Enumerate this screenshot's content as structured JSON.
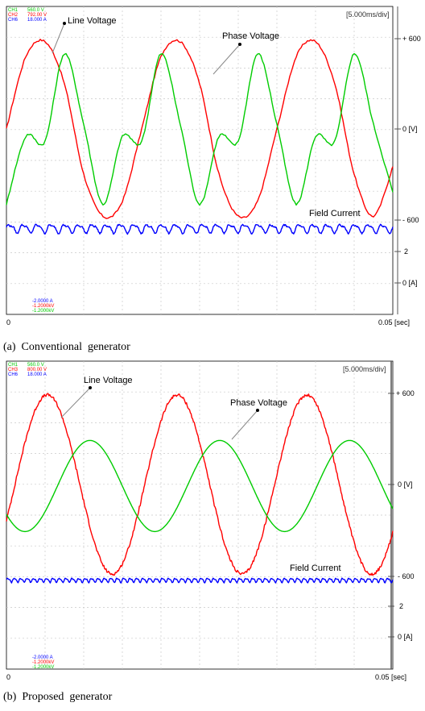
{
  "chart_data": [
    {
      "type": "line",
      "caption": "(a)  Conventional  generator",
      "time_div": "[5.000ms/div]",
      "channels": [
        {
          "name": "CH1",
          "value": "560.0 V",
          "color": "#00cc00"
        },
        {
          "name": "CH2",
          "value": "792.00 V",
          "color": "#ff0000"
        },
        {
          "name": "CH6",
          "value": "18.000 A",
          "color": "#0000ff"
        }
      ],
      "offsets": [
        {
          "text": "-2.0000 A",
          "color": "#0000ff"
        },
        {
          "text": "-1.2000kV",
          "color": "#ff0000"
        },
        {
          "text": "-1.2000kV",
          "color": "#00cc00"
        }
      ],
      "x_ticks": [
        "0",
        "0.05 [sec]"
      ],
      "xlim": [
        0,
        0.05
      ],
      "voltage_ticks": [
        "+ 600",
        "0 [V]",
        "- 600"
      ],
      "current_ticks": [
        "2",
        "0 [A]"
      ],
      "annotations": [
        "Line Voltage",
        "Phase Voltage",
        "Field Current"
      ],
      "series": [
        {
          "name": "Line Voltage",
          "color": "#ff0000",
          "x": [
            0.0,
            0.0025,
            0.005,
            0.0075,
            0.01,
            0.0125,
            0.015,
            0.0175,
            0.02,
            0.0225,
            0.025,
            0.0275,
            0.03,
            0.0325,
            0.035,
            0.0375,
            0.04,
            0.0425,
            0.045,
            0.0475,
            0.05
          ],
          "y": [
            0,
            480,
            580,
            300,
            -300,
            -580,
            -480,
            0,
            480,
            580,
            300,
            -300,
            -580,
            -480,
            0,
            480,
            580,
            300,
            -300,
            -580,
            -250
          ]
        },
        {
          "name": "Phase Voltage",
          "color": "#00cc00",
          "x": [
            0.0,
            0.0025,
            0.005,
            0.0075,
            0.01,
            0.0125,
            0.015,
            0.0175,
            0.02,
            0.0225,
            0.025,
            0.0275,
            0.03,
            0.0325,
            0.035,
            0.0375,
            0.04,
            0.0425,
            0.045,
            0.0475,
            0.05
          ],
          "y": [
            -500,
            -50,
            -80,
            500,
            30,
            -500,
            -50,
            -80,
            500,
            30,
            -500,
            -50,
            -80,
            500,
            30,
            -500,
            -50,
            -80,
            500,
            30,
            -420
          ]
        },
        {
          "name": "Field Current",
          "color": "#0000ff",
          "baseline_v": -660,
          "ripple_v": 25,
          "ripple_cycles": 28
        }
      ]
    },
    {
      "type": "line",
      "caption": "(b)  Proposed  generator",
      "time_div": "[5.000ms/div]",
      "channels": [
        {
          "name": "CH1",
          "value": "560.0 V",
          "color": "#00cc00"
        },
        {
          "name": "CH3",
          "value": "800.00 V",
          "color": "#ff0000"
        },
        {
          "name": "CH6",
          "value": "18.000 A",
          "color": "#0000ff"
        }
      ],
      "offsets": [
        {
          "text": "-2.0000 A",
          "color": "#0000ff"
        },
        {
          "text": "-1.2000kV",
          "color": "#ff0000"
        },
        {
          "text": "-1.2000kV",
          "color": "#00cc00"
        }
      ],
      "x_ticks": [
        "0",
        "0.05 [sec]"
      ],
      "xlim": [
        0,
        0.05
      ],
      "voltage_ticks": [
        "+ 600",
        "0 [V]",
        "- 600"
      ],
      "current_ticks": [
        "2",
        "0 [A]"
      ],
      "annotations": [
        "Line Voltage",
        "Phase Voltage",
        "Field Current"
      ],
      "series": [
        {
          "name": "Line Voltage",
          "color": "#ff0000",
          "amplitude_v": 590,
          "period_s": 0.0168,
          "phase_s": 0.0011,
          "noise_v": 20
        },
        {
          "name": "Phase Voltage",
          "color": "#00cc00",
          "amplitude_v": 300,
          "period_s": 0.0168,
          "phase_s": 0.0066,
          "offset_v": -10
        },
        {
          "name": "Field Current",
          "color": "#0000ff",
          "baseline_v": -630,
          "ripple_v": 12,
          "ripple_cycles": 60
        }
      ]
    }
  ]
}
